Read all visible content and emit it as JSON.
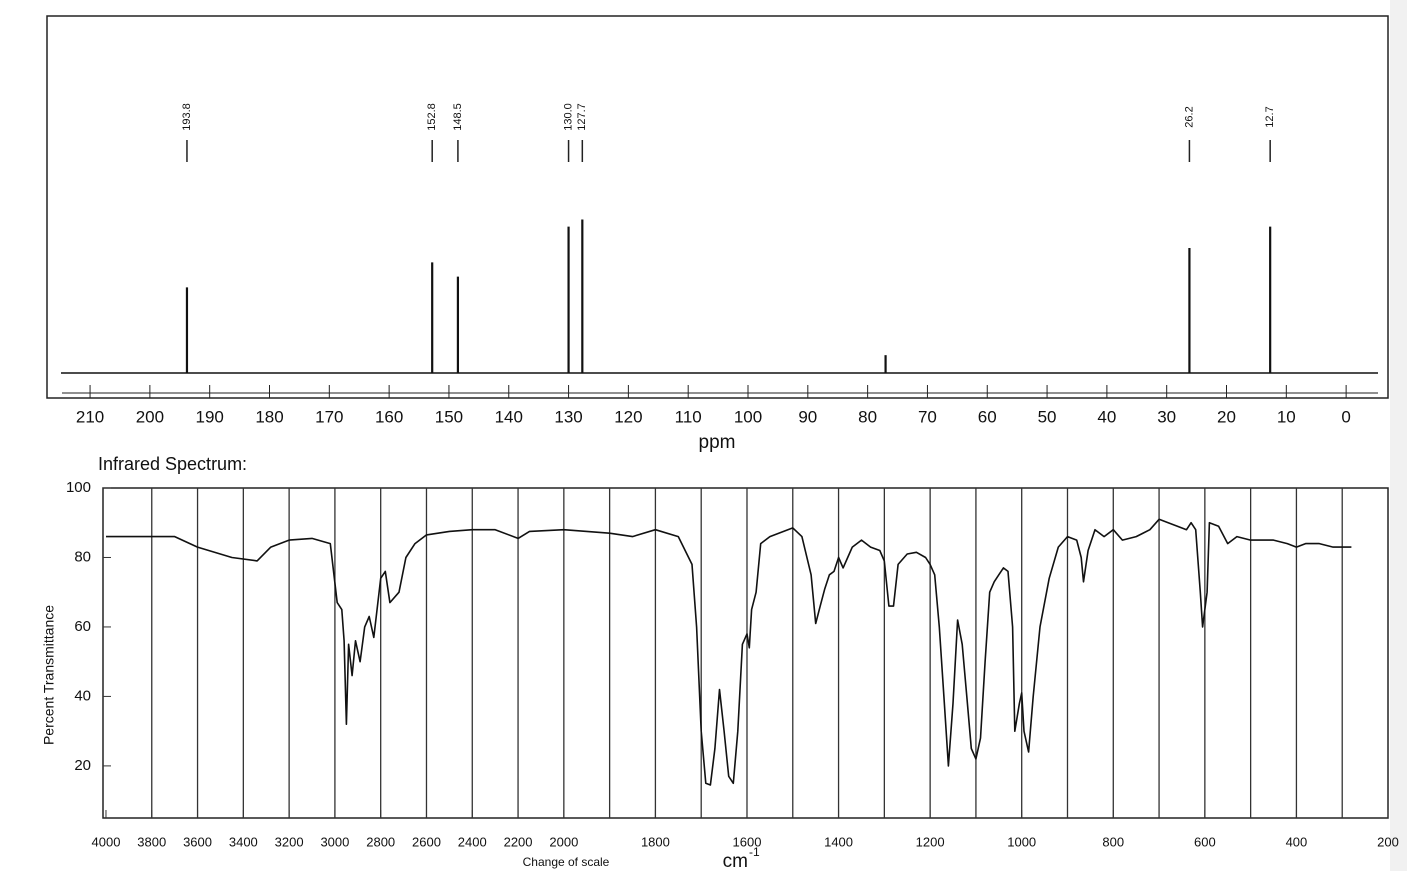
{
  "chart_data": [
    {
      "type": "stem",
      "x_label": "ppm",
      "x": [
        193.8,
        152.8,
        148.5,
        130.0,
        127.7,
        77.0,
        26.2,
        12.7
      ],
      "values": [
        24,
        31,
        27,
        41,
        43,
        5,
        35,
        41
      ],
      "peak_labels": [
        "193.8",
        "152.8",
        "148.5",
        "130.0",
        "127.7",
        null,
        "26.2",
        "12.7"
      ],
      "xlim": [
        217.2,
        -7
      ],
      "ylim": [
        -7,
        100
      ],
      "xticks": [
        210,
        200,
        190,
        180,
        170,
        160,
        150,
        140,
        130,
        120,
        110,
        100,
        90,
        80,
        70,
        60,
        50,
        40,
        30,
        20,
        10,
        0
      ],
      "color": "#111111"
    },
    {
      "type": "line",
      "title": "Infrared Spectrum:",
      "x_label": "cm",
      "x_label_superscript": "-1",
      "y_label": "Percent Transmittance",
      "annotation": "Change of scale",
      "scale_change": {
        "at": 2000,
        "factor": 2
      },
      "xlim": [
        4013,
        200
      ],
      "ylim": [
        5,
        100
      ],
      "xticks": [
        4000,
        3800,
        3600,
        3400,
        3200,
        3000,
        2800,
        2600,
        2400,
        2200,
        2000,
        1800,
        1600,
        1400,
        1200,
        1000,
        800,
        600,
        400,
        200
      ],
      "yticks": [
        20,
        40,
        60,
        80,
        100
      ],
      "xgrid": [
        3800,
        3600,
        3400,
        3200,
        3000,
        2800,
        2600,
        2400,
        2200,
        2000,
        1900,
        1800,
        1700,
        1600,
        1500,
        1400,
        1300,
        1200,
        1100,
        1000,
        900,
        800,
        700,
        600,
        500,
        400,
        300
      ],
      "grid": true,
      "series": [
        {
          "color": "#111111",
          "x": [
            4000,
            3800,
            3700,
            3600,
            3450,
            3340,
            3280,
            3200,
            3100,
            3020,
            2990,
            2970,
            2960,
            2950,
            2940,
            2925,
            2910,
            2890,
            2870,
            2850,
            2830,
            2800,
            2780,
            2760,
            2720,
            2690,
            2650,
            2600,
            2500,
            2400,
            2300,
            2200,
            2150,
            2000,
            1900,
            1850,
            1800,
            1750,
            1720,
            1710,
            1700,
            1690,
            1680,
            1670,
            1660,
            1650,
            1640,
            1630,
            1620,
            1610,
            1600,
            1595,
            1590,
            1580,
            1570,
            1550,
            1500,
            1480,
            1460,
            1450,
            1440,
            1430,
            1420,
            1410,
            1400,
            1390,
            1380,
            1370,
            1350,
            1330,
            1310,
            1300,
            1290,
            1280,
            1270,
            1250,
            1230,
            1210,
            1200,
            1190,
            1180,
            1170,
            1160,
            1150,
            1140,
            1130,
            1120,
            1110,
            1100,
            1090,
            1080,
            1070,
            1060,
            1050,
            1040,
            1030,
            1020,
            1015,
            1005,
            1000,
            995,
            985,
            975,
            960,
            940,
            920,
            900,
            880,
            870,
            865,
            855,
            840,
            820,
            800,
            780,
            750,
            720,
            700,
            680,
            660,
            640,
            630,
            620,
            610,
            605,
            595,
            590,
            570,
            550,
            530,
            500,
            450,
            420,
            400,
            380,
            350,
            320,
            300,
            280
          ],
          "values": [
            86,
            86,
            86,
            83,
            80,
            79,
            83,
            85,
            85.5,
            84,
            67,
            65,
            56,
            32,
            55,
            46,
            56,
            50,
            60,
            63,
            57,
            74,
            76,
            67,
            70,
            80,
            84,
            86.5,
            87.5,
            88,
            88,
            85.5,
            87.5,
            88,
            87,
            86,
            88,
            86,
            78,
            60,
            30,
            15,
            14.5,
            25,
            42,
            30,
            17,
            15,
            30,
            55,
            58,
            54,
            65,
            70,
            84,
            86,
            88.5,
            86,
            75,
            61,
            66,
            71,
            75,
            76,
            80,
            77,
            80,
            83,
            85,
            83,
            82,
            79,
            66,
            66,
            78,
            81,
            81.5,
            80,
            78,
            75,
            60,
            40,
            20,
            38,
            62,
            55,
            40,
            25,
            22,
            28,
            50,
            70,
            73,
            75,
            77,
            76,
            60,
            30,
            38,
            41,
            30,
            24,
            40,
            60,
            74,
            83,
            86,
            85,
            80,
            73,
            82,
            88,
            86,
            88,
            85,
            86,
            88,
            91,
            90,
            89,
            88,
            90,
            88,
            70,
            60,
            70,
            90,
            89,
            84,
            86,
            85,
            85,
            84,
            83,
            84,
            84,
            83,
            83,
            83
          ]
        }
      ]
    }
  ]
}
